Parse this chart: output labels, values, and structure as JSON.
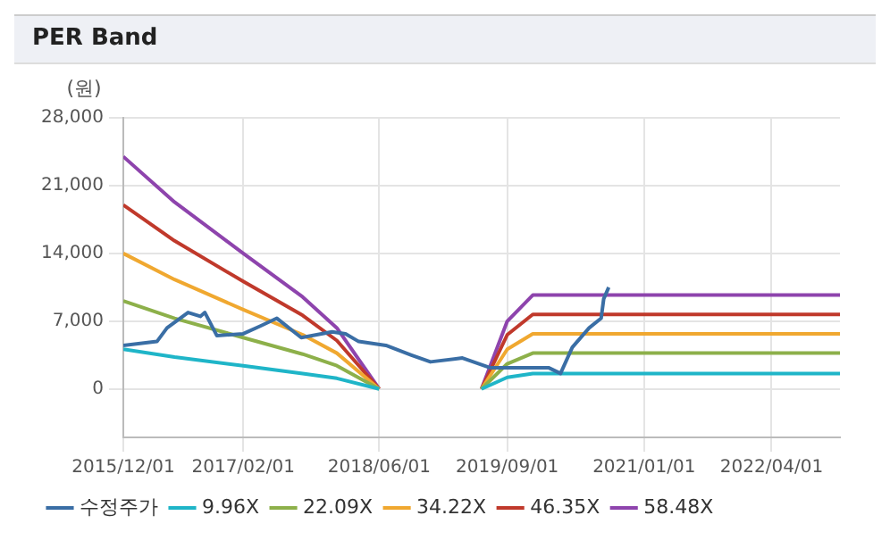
{
  "chart_data": {
    "type": "line",
    "title": "PER Band",
    "ylabel": "(원)",
    "xlim": [
      "2015-12-01",
      "2022-12-01"
    ],
    "xticks": [
      {
        "value": "2015-12-01",
        "label": "2015/12/01"
      },
      {
        "value": "2017-02-01",
        "label": "2017/02/01"
      },
      {
        "value": "2018-06-01",
        "label": "2018/06/01"
      },
      {
        "value": "2019-09-01",
        "label": "2019/09/01"
      },
      {
        "value": "2021-01-01",
        "label": "2021/01/01"
      },
      {
        "value": "2022-04-01",
        "label": "2022/04/01"
      }
    ],
    "ylim": [
      -5000,
      28000
    ],
    "yticks": [
      0,
      {
        "value": 7000,
        "label": "7,000"
      },
      {
        "value": 14000,
        "label": "14,000"
      },
      {
        "value": 21000,
        "label": "21,000"
      },
      {
        "value": 28000,
        "label": "28,000"
      }
    ],
    "grid": true,
    "legend": "bottom",
    "marker": "none",
    "line_style": "solid",
    "series": [
      {
        "name": "수정주가",
        "color": "#3a6ea5",
        "x": [
          "2015-12-01",
          "2016-03-30",
          "2016-05-05",
          "2016-07-19",
          "2016-09-01",
          "2016-09-17",
          "2016-10-30",
          "2017-02-01",
          "2017-04-03",
          "2017-06-01",
          "2017-08-27",
          "2017-12-15",
          "2018-02-01",
          "2018-03-20",
          "2018-06-25",
          "2018-09-24",
          "2018-12-01",
          "2019-03-25",
          "2019-07-01",
          "2019-09-01",
          "2020-01-26",
          "2020-03-09",
          "2020-04-20",
          "2020-06-19",
          "2020-08-01",
          "2020-08-10",
          "2020-08-28"
        ],
        "values": [
          4500,
          4900,
          6300,
          7900,
          7500,
          7900,
          5500,
          5700,
          6500,
          7300,
          5300,
          5900,
          5700,
          4900,
          4500,
          3500,
          2800,
          3200,
          2200,
          2200,
          2200,
          1600,
          4300,
          6300,
          7300,
          9300,
          10500
        ]
      },
      {
        "name": "9.96X",
        "color": "#1fb5c8",
        "x": [
          "2015-12-01",
          "2016-06-01",
          "2017-02-01",
          "2017-09-01",
          "2018-01-01",
          "2018-06-01",
          "2018-12-01",
          "2019-06-01",
          "2019-09-01",
          "2019-12-01",
          "2022-12-01"
        ],
        "values": [
          4100,
          3300,
          2400,
          1600,
          1100,
          0,
          null,
          0,
          1200,
          1600,
          1600
        ]
      },
      {
        "name": "22.09X",
        "color": "#8db04a",
        "x": [
          "2015-12-01",
          "2016-06-01",
          "2017-02-01",
          "2017-09-01",
          "2018-01-01",
          "2018-06-01",
          "2018-12-01",
          "2019-06-01",
          "2019-09-01",
          "2019-12-01",
          "2022-12-01"
        ],
        "values": [
          9100,
          7300,
          5300,
          3600,
          2400,
          0,
          null,
          0,
          2600,
          3700,
          3700
        ]
      },
      {
        "name": "34.22X",
        "color": "#f0a830",
        "x": [
          "2015-12-01",
          "2016-06-01",
          "2017-02-01",
          "2017-09-01",
          "2018-01-01",
          "2018-06-01",
          "2018-12-01",
          "2019-06-01",
          "2019-09-01",
          "2019-12-01",
          "2022-12-01"
        ],
        "values": [
          14000,
          11300,
          8200,
          5600,
          3700,
          0,
          null,
          0,
          4100,
          5700,
          5700
        ]
      },
      {
        "name": "46.35X",
        "color": "#c0392b",
        "x": [
          "2015-12-01",
          "2016-06-01",
          "2017-02-01",
          "2017-09-01",
          "2018-01-01",
          "2018-06-01",
          "2018-12-01",
          "2019-06-01",
          "2019-09-01",
          "2019-12-01",
          "2022-12-01"
        ],
        "values": [
          19000,
          15300,
          11100,
          7600,
          5000,
          0,
          null,
          0,
          5600,
          7700,
          7700
        ]
      },
      {
        "name": "58.48X",
        "color": "#8e44ad",
        "x": [
          "2015-12-01",
          "2016-06-01",
          "2017-02-01",
          "2017-09-01",
          "2018-01-01",
          "2018-06-01",
          "2018-12-01",
          "2019-06-01",
          "2019-09-01",
          "2019-12-01",
          "2022-12-01"
        ],
        "values": [
          24000,
          19300,
          14000,
          9500,
          6300,
          0,
          null,
          0,
          7000,
          9700,
          9700
        ]
      }
    ]
  }
}
